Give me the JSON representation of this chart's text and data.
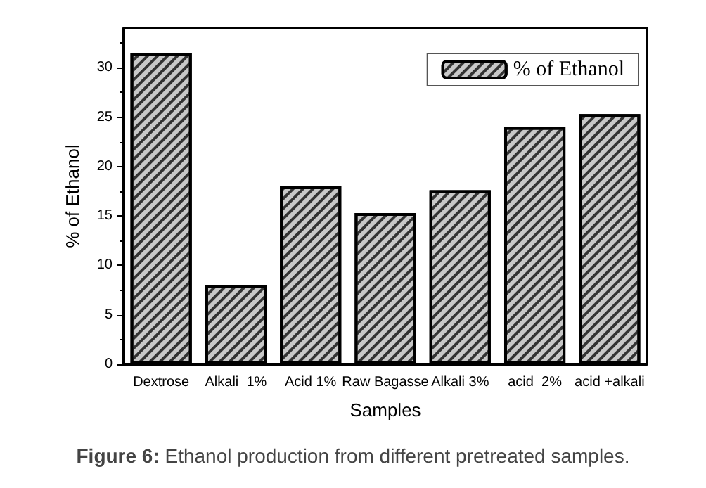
{
  "chart_data": {
    "type": "bar",
    "xlabel": "Samples",
    "ylabel": "% of Ethanol",
    "categories": [
      "Dextrose",
      "Alkali  1%",
      "Acid 1%",
      "Raw Bagasse",
      "Alkali 3%",
      "acid  2%",
      "acid +alkali"
    ],
    "series": [
      {
        "name": "% of Ethanol",
        "color": "#c8c8c8",
        "values": [
          31.5,
          8,
          18,
          15.3,
          17.6,
          24,
          25.3
        ]
      }
    ],
    "ylim": [
      0,
      34
    ],
    "yticks": [
      0,
      5,
      10,
      15,
      20,
      25,
      30
    ],
    "grid": false,
    "legend": "top right",
    "annotations": [
      "Figure 6: Ethanol production from different pretreated samples."
    ]
  }
}
